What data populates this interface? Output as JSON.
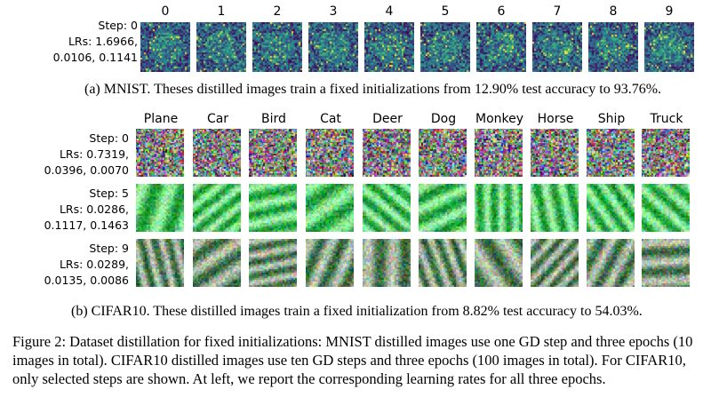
{
  "mnist": {
    "digits": [
      "0",
      "1",
      "2",
      "3",
      "4",
      "5",
      "6",
      "7",
      "8",
      "9"
    ],
    "step_line": "Step: 0",
    "lr_line1": "LRs: 1.6966,",
    "lr_line2": "0.0106, 0.1141",
    "caption": "(a) MNIST. Theses distilled images train a fixed initializations from 12.90% test accuracy to 93.76%."
  },
  "cifar": {
    "classes": [
      "Plane",
      "Car",
      "Bird",
      "Cat",
      "Deer",
      "Dog",
      "Monkey",
      "Horse",
      "Ship",
      "Truck"
    ],
    "rows": [
      {
        "step_line": "Step: 0",
        "lr_line1": "LRs: 0.7319,",
        "lr_line2": "0.0396, 0.0070"
      },
      {
        "step_line": "Step: 5",
        "lr_line1": "LRs: 0.0286,",
        "lr_line2": "0.1117, 0.1463"
      },
      {
        "step_line": "Step: 9",
        "lr_line1": "LRs: 0.0289,",
        "lr_line2": "0.0135, 0.0086"
      }
    ],
    "caption": "(b) CIFAR10. These distilled images train a fixed initialization from 8.82% test accuracy to 54.03%."
  },
  "figure_caption": "Figure 2: Dataset distillation for fixed initializations: MNIST distilled images use one GD step and three epochs (10 images in total). CIFAR10 distilled images use ten GD steps and three epochs (100 images in total). For CIFAR10, only selected steps are shown. At left, we report the corresponding learning rates for all three epochs."
}
